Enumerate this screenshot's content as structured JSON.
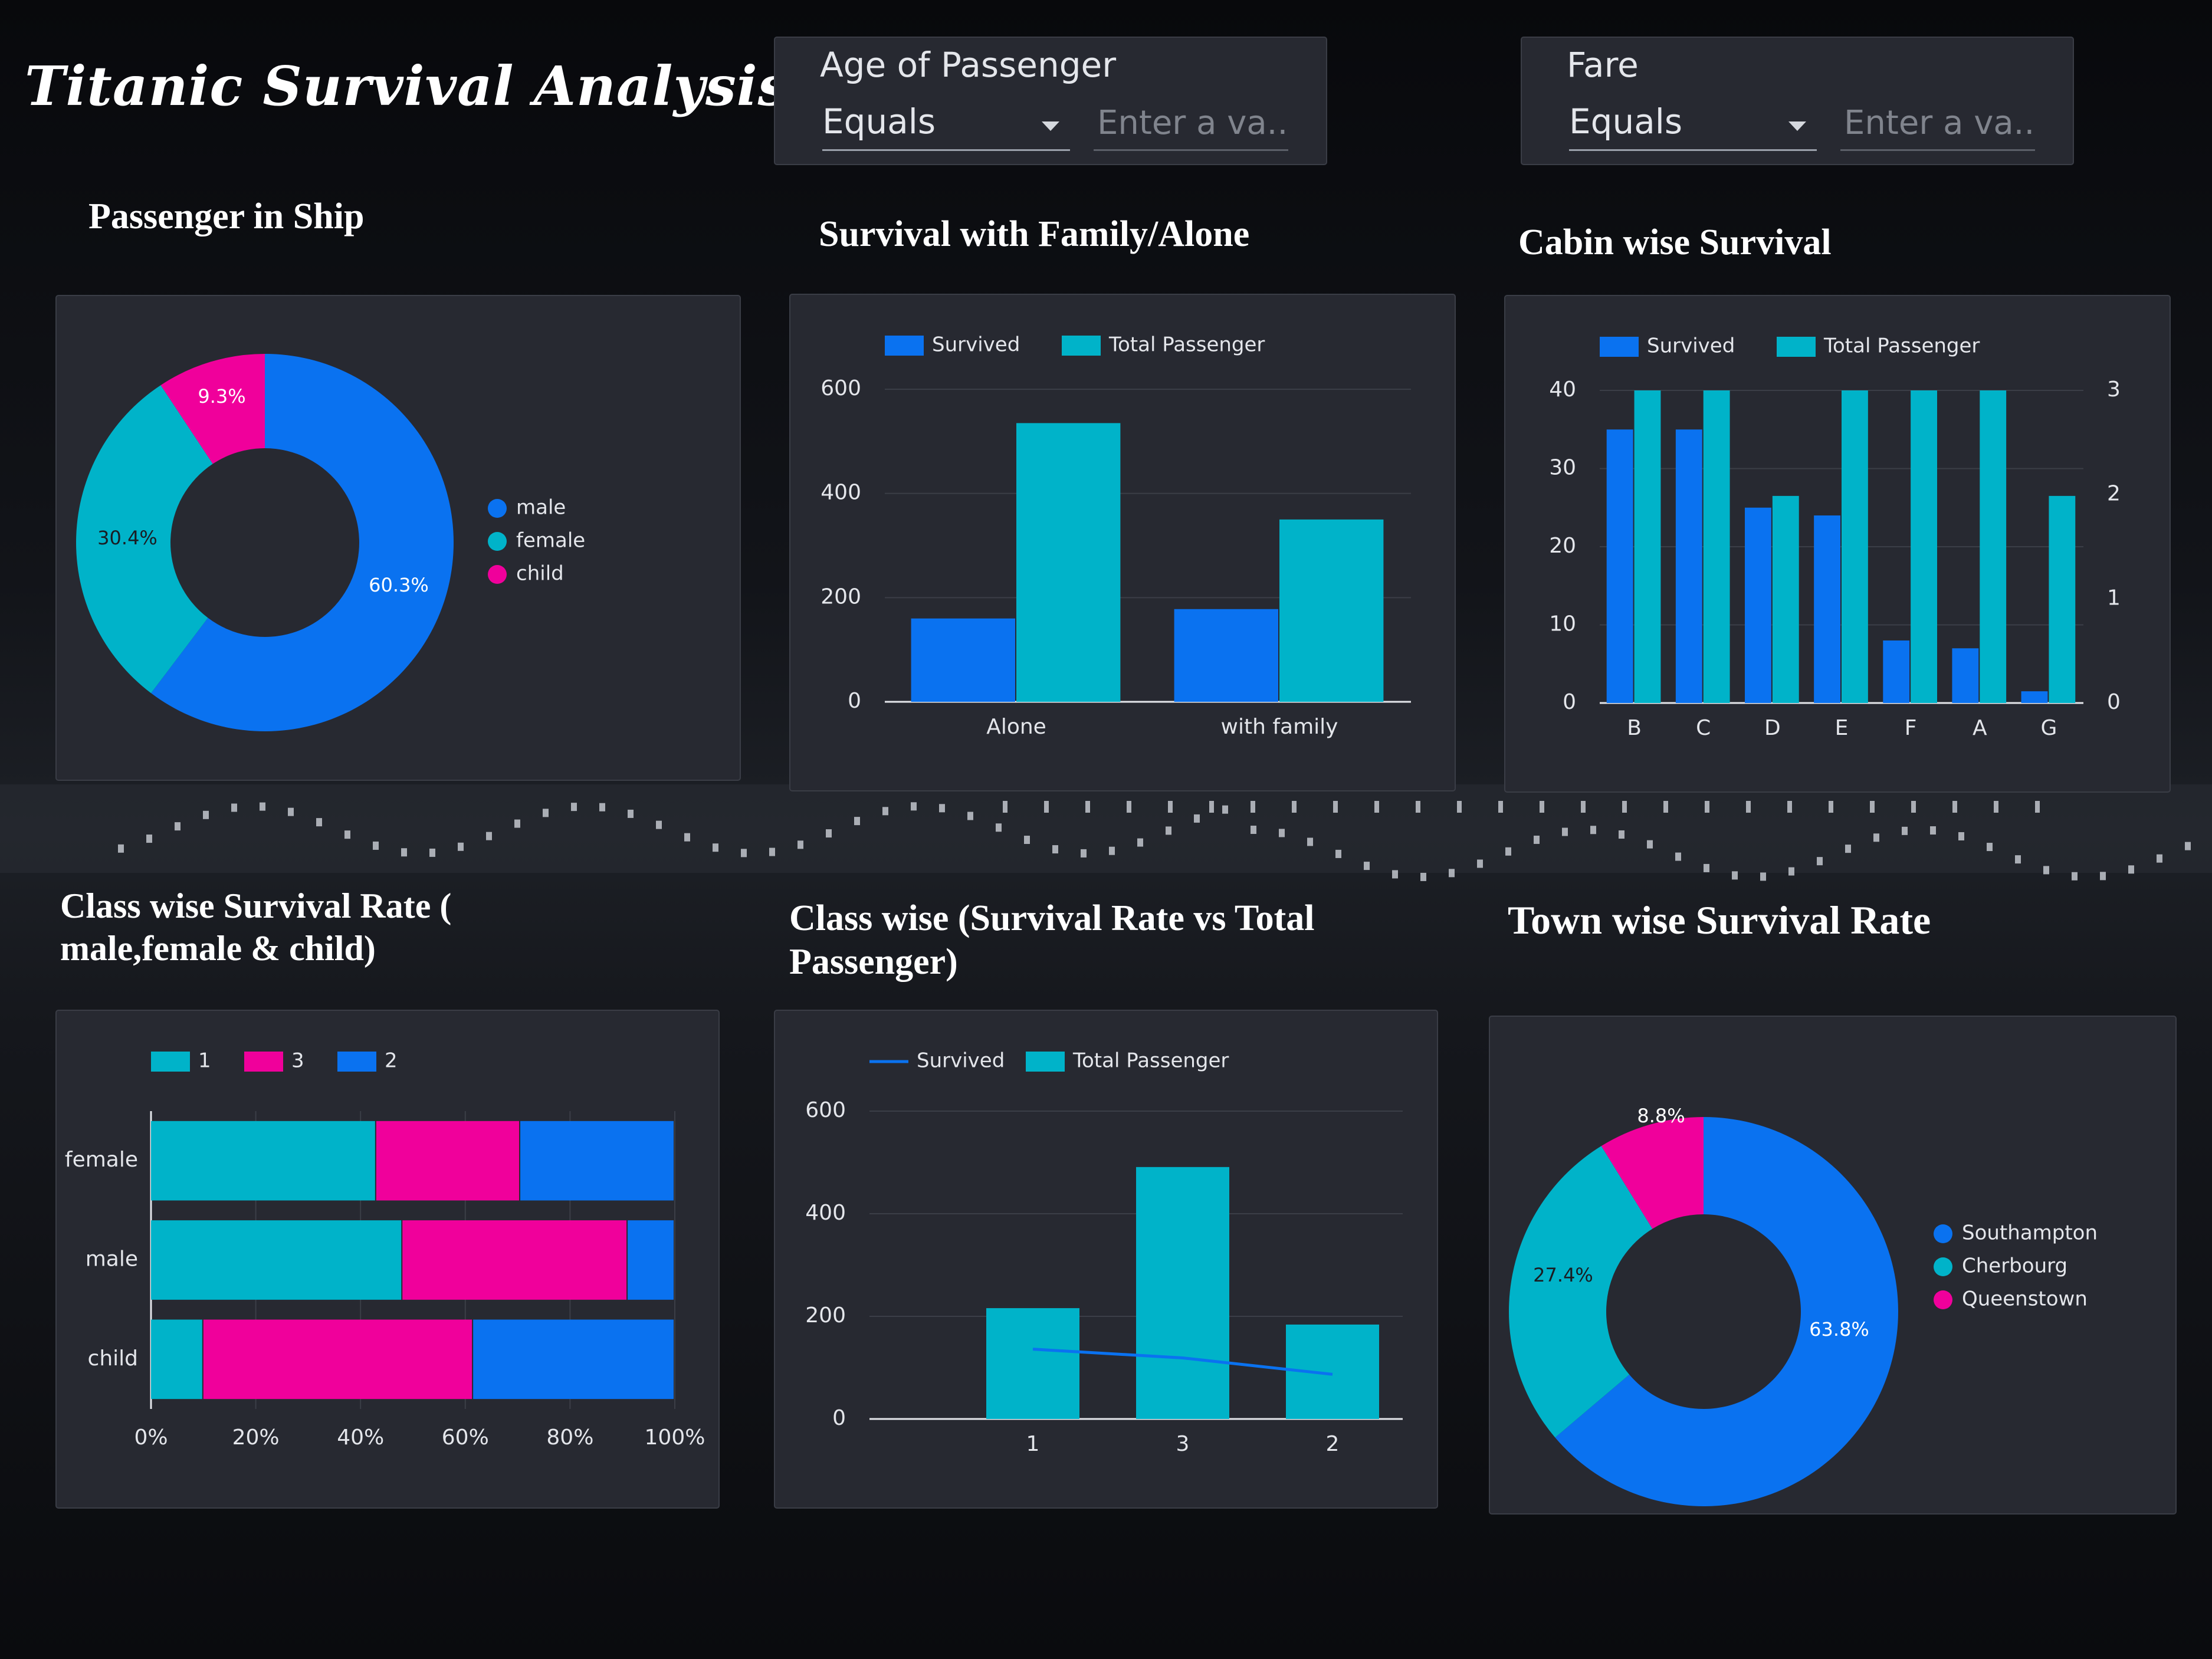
{
  "dashboard": {
    "title": "Titanic Survival Analysis",
    "filters": [
      {
        "label": "Age of Passenger",
        "operator": "Equals",
        "placeholder": "Enter a va..."
      },
      {
        "label": "Fare",
        "operator": "Equals",
        "placeholder": "Enter a va..."
      }
    ],
    "headings": {
      "passenger_in_ship": "Passenger in Ship",
      "family_alone": "Survival with Family/Alone",
      "cabin": "Cabin wise Survival",
      "class_rate_line1": "Class wise Survival Rate (",
      "class_rate_line2": "male,female & child)",
      "class_vs_total_line1": "Class wise (Survival Rate vs Total",
      "class_vs_total_line2": "Passenger)",
      "town": "Town wise Survival Rate"
    }
  },
  "colors": {
    "blue": "#0a72f0",
    "teal": "#00b3c9",
    "pink": "#f0009b",
    "panel": "#272931",
    "grid": "#3b3e47",
    "text": "#e4e6eb"
  },
  "chart_data": [
    {
      "id": "passenger_in_ship",
      "type": "pie",
      "labels": [
        "male",
        "female",
        "child"
      ],
      "values": [
        60.3,
        30.4,
        9.3
      ],
      "value_labels": [
        "60.3%",
        "30.4%",
        "9.3%"
      ],
      "legend": "right"
    },
    {
      "id": "family_alone",
      "type": "bar",
      "categories": [
        "Alone",
        "with family"
      ],
      "series": [
        {
          "name": "Survived",
          "values": [
            160,
            178
          ]
        },
        {
          "name": "Total Passenger",
          "values": [
            535,
            350
          ]
        }
      ],
      "yticks": [
        "0",
        "200",
        "400",
        "600"
      ],
      "ylim": [
        0,
        600
      ],
      "legend": "top"
    },
    {
      "id": "cabin",
      "type": "bar",
      "categories": [
        "B",
        "C",
        "D",
        "E",
        "F",
        "A",
        "G"
      ],
      "series": [
        {
          "name": "Survived",
          "values": [
            35,
            35,
            25,
            24,
            8,
            7,
            1.5
          ]
        },
        {
          "name": "Total Passenger",
          "values": [
            40,
            40,
            26.5,
            40,
            40,
            40,
            26.5
          ]
        }
      ],
      "yticks": [
        "0",
        "10",
        "20",
        "30",
        "40"
      ],
      "yticks_right": [
        "0",
        "1",
        "2",
        "3"
      ],
      "ylim": [
        0,
        40
      ],
      "legend": "top"
    },
    {
      "id": "class_rate",
      "type": "bar",
      "orientation": "horizontal",
      "stacked": "percent",
      "categories": [
        "female",
        "male",
        "child"
      ],
      "series": [
        {
          "name": "1",
          "values": [
            43,
            48,
            10
          ]
        },
        {
          "name": "3",
          "values": [
            27.5,
            43,
            51.5
          ]
        },
        {
          "name": "2",
          "values": [
            29.5,
            9,
            38.5
          ]
        }
      ],
      "xticks": [
        "0%",
        "20%",
        "40%",
        "60%",
        "80%",
        "100%"
      ],
      "legend": "top"
    },
    {
      "id": "class_vs_total",
      "type": "bar",
      "categories": [
        "1",
        "3",
        "2"
      ],
      "series": [
        {
          "name": "Survived",
          "type": "line",
          "values": [
            136,
            119,
            87
          ]
        },
        {
          "name": "Total Passenger",
          "values": [
            216,
            491,
            184
          ]
        }
      ],
      "yticks": [
        "0",
        "200",
        "400",
        "600"
      ],
      "ylim": [
        0,
        600
      ],
      "legend": "top"
    },
    {
      "id": "town",
      "type": "pie",
      "labels": [
        "Southampton",
        "Cherbourg",
        "Queenstown"
      ],
      "values": [
        63.8,
        27.4,
        8.8
      ],
      "value_labels": [
        "63.8%",
        "27.4%",
        "8.8%"
      ],
      "legend": "right"
    }
  ]
}
